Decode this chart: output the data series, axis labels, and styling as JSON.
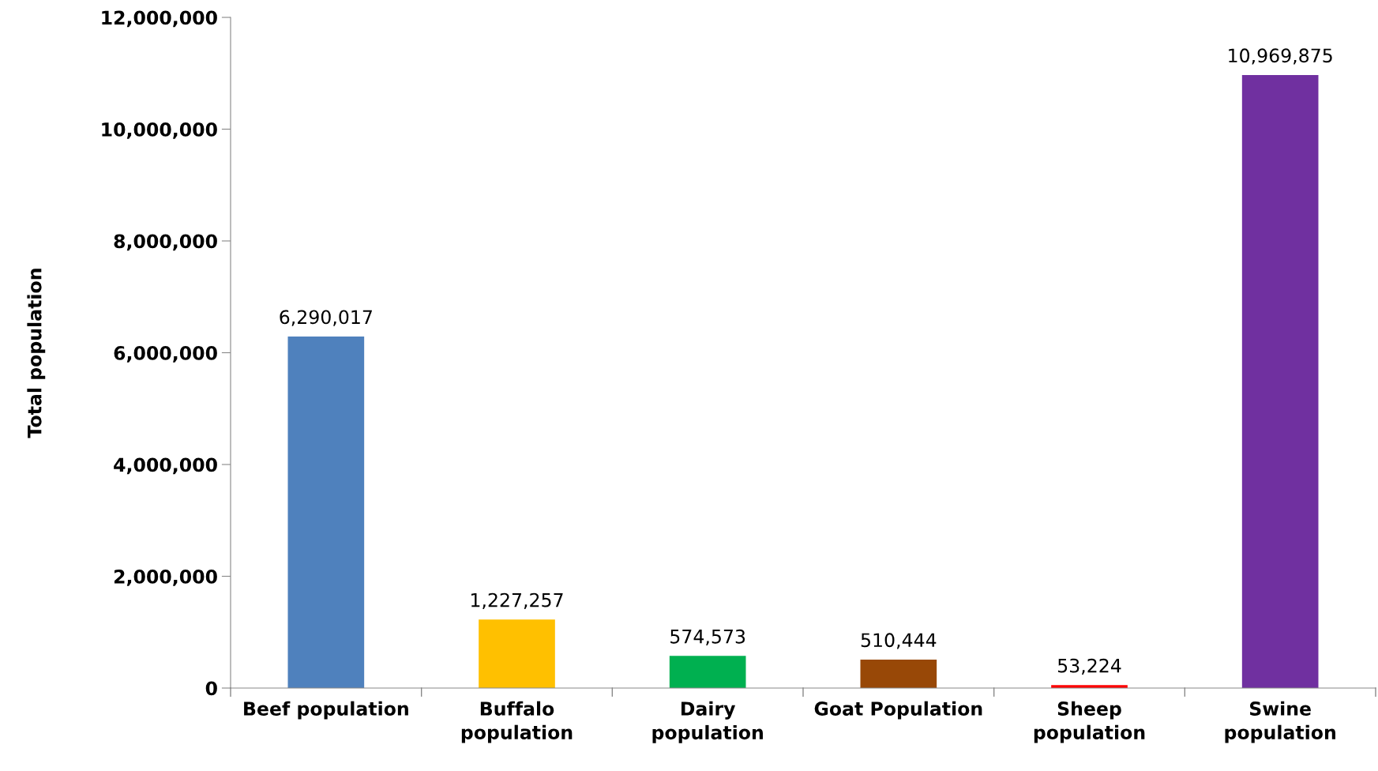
{
  "chart_data": {
    "type": "bar",
    "ylabel": "Total population",
    "categories": [
      "Beef population",
      "Buffalo\npopulation",
      "Dairy\npopulation",
      "Goat Population",
      "Sheep\npopulation",
      "Swine\npopulation"
    ],
    "values": [
      6290017,
      1227257,
      574573,
      510444,
      53224,
      10969875
    ],
    "colors": [
      "#4f81bd",
      "#ffc000",
      "#00b050",
      "#984807",
      "#ff0000",
      "#7030a0"
    ],
    "value_labels": [
      "6,290,017",
      "1,227,257",
      "574,573",
      "510,444",
      "53,224",
      "10,969,875"
    ],
    "ylim": [
      0,
      12000000
    ],
    "yticks": [
      {
        "value": 0,
        "label": "0"
      },
      {
        "value": 2000000,
        "label": "2,000,000"
      },
      {
        "value": 4000000,
        "label": "4,000,000"
      },
      {
        "value": 6000000,
        "label": "6,000,000"
      },
      {
        "value": 8000000,
        "label": "8,000,000"
      },
      {
        "value": 10000000,
        "label": "10,000,000"
      },
      {
        "value": 12000000,
        "label": "12,000,000"
      }
    ],
    "grid": false,
    "legend": false
  }
}
